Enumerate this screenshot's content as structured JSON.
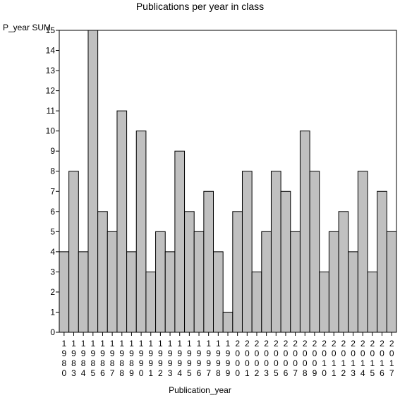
{
  "chart_data": {
    "type": "bar",
    "title": "Publications per year in class",
    "ylabel": "P_year SUM",
    "xlabel": "Publication_year",
    "ylim": [
      0,
      15
    ],
    "yticks": [
      0,
      1,
      2,
      3,
      4,
      5,
      6,
      7,
      8,
      9,
      10,
      11,
      12,
      13,
      14,
      15
    ],
    "categories": [
      "1980",
      "1983",
      "1984",
      "1985",
      "1986",
      "1987",
      "1988",
      "1989",
      "1990",
      "1991",
      "1992",
      "1993",
      "1994",
      "1995",
      "1996",
      "1997",
      "1998",
      "1999",
      "2000",
      "2001",
      "2002",
      "2003",
      "2005",
      "2006",
      "2007",
      "2008",
      "2009",
      "2010",
      "2011",
      "2012",
      "2013",
      "2014",
      "2015",
      "2016",
      "2017"
    ],
    "values": [
      4,
      8,
      4,
      15,
      6,
      5,
      11,
      4,
      10,
      3,
      5,
      4,
      9,
      6,
      5,
      7,
      4,
      1,
      6,
      8,
      3,
      5,
      8,
      7,
      5,
      10,
      8,
      3,
      5,
      6,
      4,
      8,
      3,
      7,
      5
    ],
    "grid": false,
    "legend": "none",
    "bar_fill": "#c0c0c0",
    "bar_stroke": "#000000"
  }
}
